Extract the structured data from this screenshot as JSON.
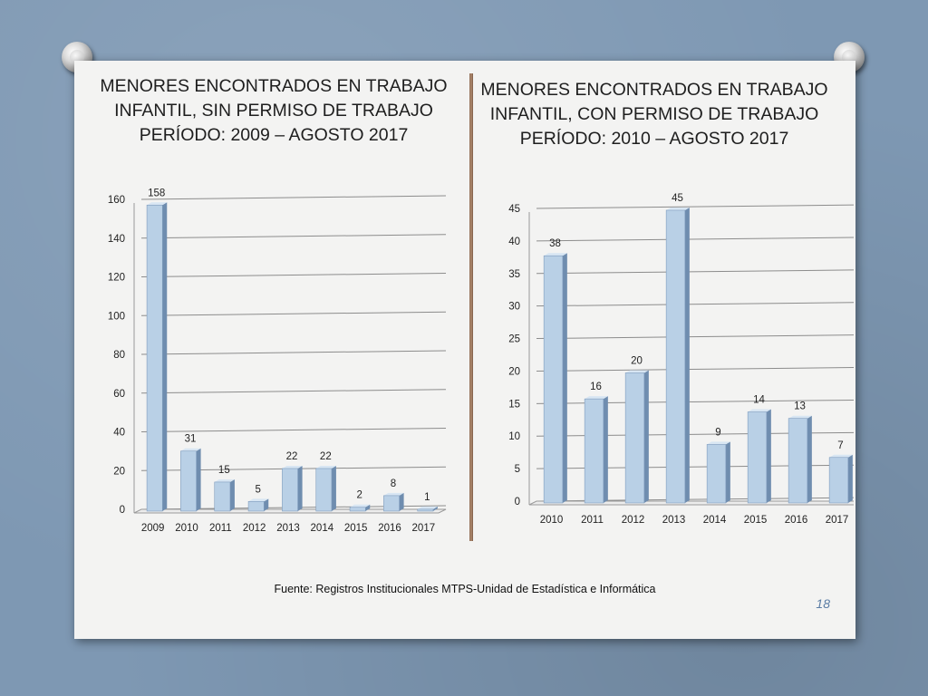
{
  "slide": {
    "source": "Fuente: Registros Institucionales MTPS-Unidad de Estadística e Informática",
    "page_number": "18"
  },
  "colors": {
    "bar_front": "#b9d0e6",
    "bar_side": "#6f8daf",
    "bar_top": "#d8e6f3",
    "gridline": "#8c8c8c"
  },
  "chart_data": [
    {
      "type": "bar",
      "title": "MENORES ENCONTRADOS EN TRABAJO INFANTIL, SIN PERMISO DE TRABAJO PERÍODO: 2009 – AGOSTO 2017",
      "title_lines": [
        "MENORES ENCONTRADOS EN TRABAJO",
        "INFANTIL, SIN PERMISO DE TRABAJO",
        "PERÍODO: 2009 – AGOSTO 2017"
      ],
      "categories": [
        "2009",
        "2010",
        "2011",
        "2012",
        "2013",
        "2014",
        "2015",
        "2016",
        "2017"
      ],
      "values": [
        158,
        31,
        15,
        5,
        22,
        22,
        2,
        8,
        1
      ],
      "ylim": [
        0,
        160
      ],
      "yticks": [
        0,
        20,
        40,
        60,
        80,
        100,
        120,
        140,
        160
      ],
      "grid": true,
      "legend": "none"
    },
    {
      "type": "bar",
      "title": "MENORES ENCONTRADOS EN TRABAJO INFANTIL, CON PERMISO DE TRABAJO PERÍODO: 2010 – AGOSTO 2017",
      "title_lines": [
        "MENORES ENCONTRADOS EN TRABAJO",
        "INFANTIL, CON PERMISO DE TRABAJO",
        "PERÍODO: 2010 – AGOSTO 2017"
      ],
      "categories": [
        "2010",
        "2011",
        "2012",
        "2013",
        "2014",
        "2015",
        "2016",
        "2017"
      ],
      "values": [
        38,
        16,
        20,
        45,
        9,
        14,
        13,
        7
      ],
      "ylim": [
        0,
        45
      ],
      "yticks": [
        0,
        5,
        10,
        15,
        20,
        25,
        30,
        35,
        40,
        45
      ],
      "grid": true,
      "legend": "none"
    }
  ]
}
